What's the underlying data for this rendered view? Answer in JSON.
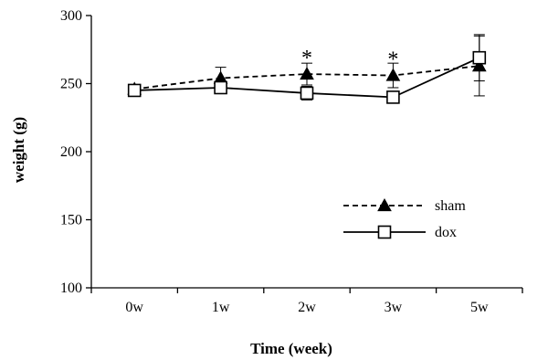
{
  "chart_data": {
    "type": "line",
    "xlabel": "Time (week)",
    "ylabel": "weight (g)",
    "categories": [
      "0w",
      "1w",
      "2w",
      "3w",
      "5w"
    ],
    "ylim": [
      100,
      300
    ],
    "yticks": [
      100,
      150,
      200,
      250,
      300
    ],
    "grid": false,
    "legend_position": "right-middle",
    "series": [
      {
        "name": "sham",
        "marker": "filled-triangle",
        "line_style": "dashed",
        "values": [
          246,
          254,
          257,
          256,
          263
        ],
        "error": [
          2,
          8,
          8,
          9,
          22
        ]
      },
      {
        "name": "dox",
        "marker": "open-square",
        "line_style": "solid",
        "values": [
          245,
          247,
          243,
          240,
          269
        ],
        "error": [
          2,
          3,
          5,
          4,
          17
        ]
      }
    ],
    "annotations": [
      {
        "category": "2w",
        "text": "*",
        "y": 273
      },
      {
        "category": "3w",
        "text": "*",
        "y": 272
      }
    ]
  }
}
